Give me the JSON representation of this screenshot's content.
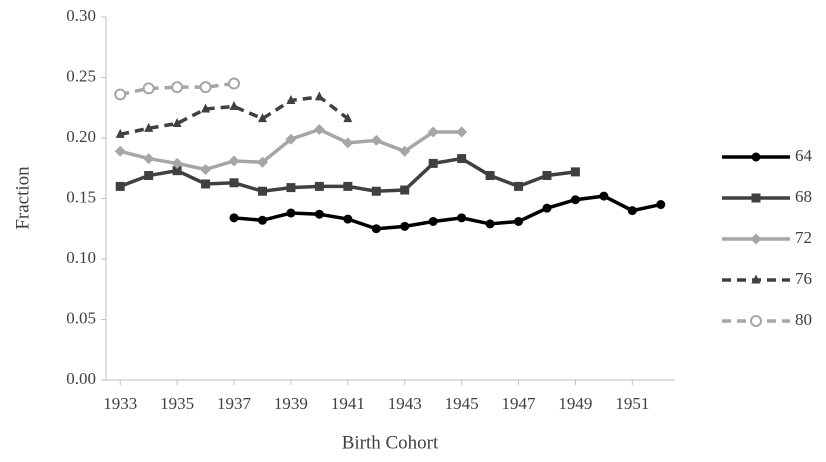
{
  "chart_data": {
    "type": "line",
    "x_label": "Birth Cohort",
    "y_label": "Fraction",
    "x": [
      1933,
      1934,
      1935,
      1936,
      1937,
      1938,
      1939,
      1940,
      1941,
      1942,
      1943,
      1944,
      1945,
      1946,
      1947,
      1948,
      1949,
      1950,
      1951,
      1952
    ],
    "xlim": [
      1932.5,
      1952.5
    ],
    "xticks": [
      1933,
      1935,
      1937,
      1939,
      1941,
      1943,
      1945,
      1947,
      1949,
      1951
    ],
    "ylim": [
      0,
      0.3
    ],
    "yticks": [
      {
        "value": 0,
        "label": "0.00"
      },
      {
        "value": 0.05,
        "label": "0.05"
      },
      {
        "value": 0.1,
        "label": "0.10"
      },
      {
        "value": 0.15,
        "label": "0.15"
      },
      {
        "value": 0.2,
        "label": "0.20"
      },
      {
        "value": 0.25,
        "label": "0.25"
      },
      {
        "value": 0.3,
        "label": "0.30"
      }
    ],
    "grid": false,
    "legend": "right",
    "series": [
      {
        "name": "64",
        "color": "#000000",
        "dash": false,
        "marker": "circle",
        "values": [
          null,
          null,
          null,
          null,
          0.134,
          0.132,
          0.138,
          0.137,
          0.133,
          0.125,
          0.127,
          0.131,
          0.134,
          0.129,
          0.131,
          0.142,
          0.149,
          0.152,
          0.14,
          0.145
        ]
      },
      {
        "name": "68",
        "color": "#404040",
        "dash": false,
        "marker": "square",
        "values": [
          0.16,
          0.169,
          0.173,
          0.162,
          0.163,
          0.156,
          0.159,
          0.16,
          0.16,
          0.156,
          0.157,
          0.179,
          0.183,
          0.169,
          0.16,
          0.169,
          0.172,
          null,
          null,
          null
        ]
      },
      {
        "name": "72",
        "color": "#a6a6a6",
        "dash": false,
        "marker": "diamond",
        "values": [
          0.189,
          0.183,
          0.179,
          0.174,
          0.181,
          0.18,
          0.199,
          0.207,
          0.196,
          0.198,
          0.189,
          0.205,
          0.205,
          null,
          null,
          null,
          null,
          null,
          null,
          null
        ]
      },
      {
        "name": "76",
        "color": "#404040",
        "dash": true,
        "marker": "triangle",
        "values": [
          0.203,
          0.208,
          0.212,
          0.224,
          0.226,
          0.216,
          0.231,
          0.234,
          0.216,
          null,
          null,
          null,
          null,
          null,
          null,
          null,
          null,
          null,
          null,
          null
        ]
      },
      {
        "name": "80",
        "color": "#a6a6a6",
        "dash": true,
        "marker": "open-circle",
        "values": [
          0.236,
          0.241,
          0.242,
          0.242,
          0.245,
          null,
          null,
          null,
          null,
          null,
          null,
          null,
          null,
          null,
          null,
          null,
          null,
          null,
          null,
          null
        ]
      }
    ]
  }
}
